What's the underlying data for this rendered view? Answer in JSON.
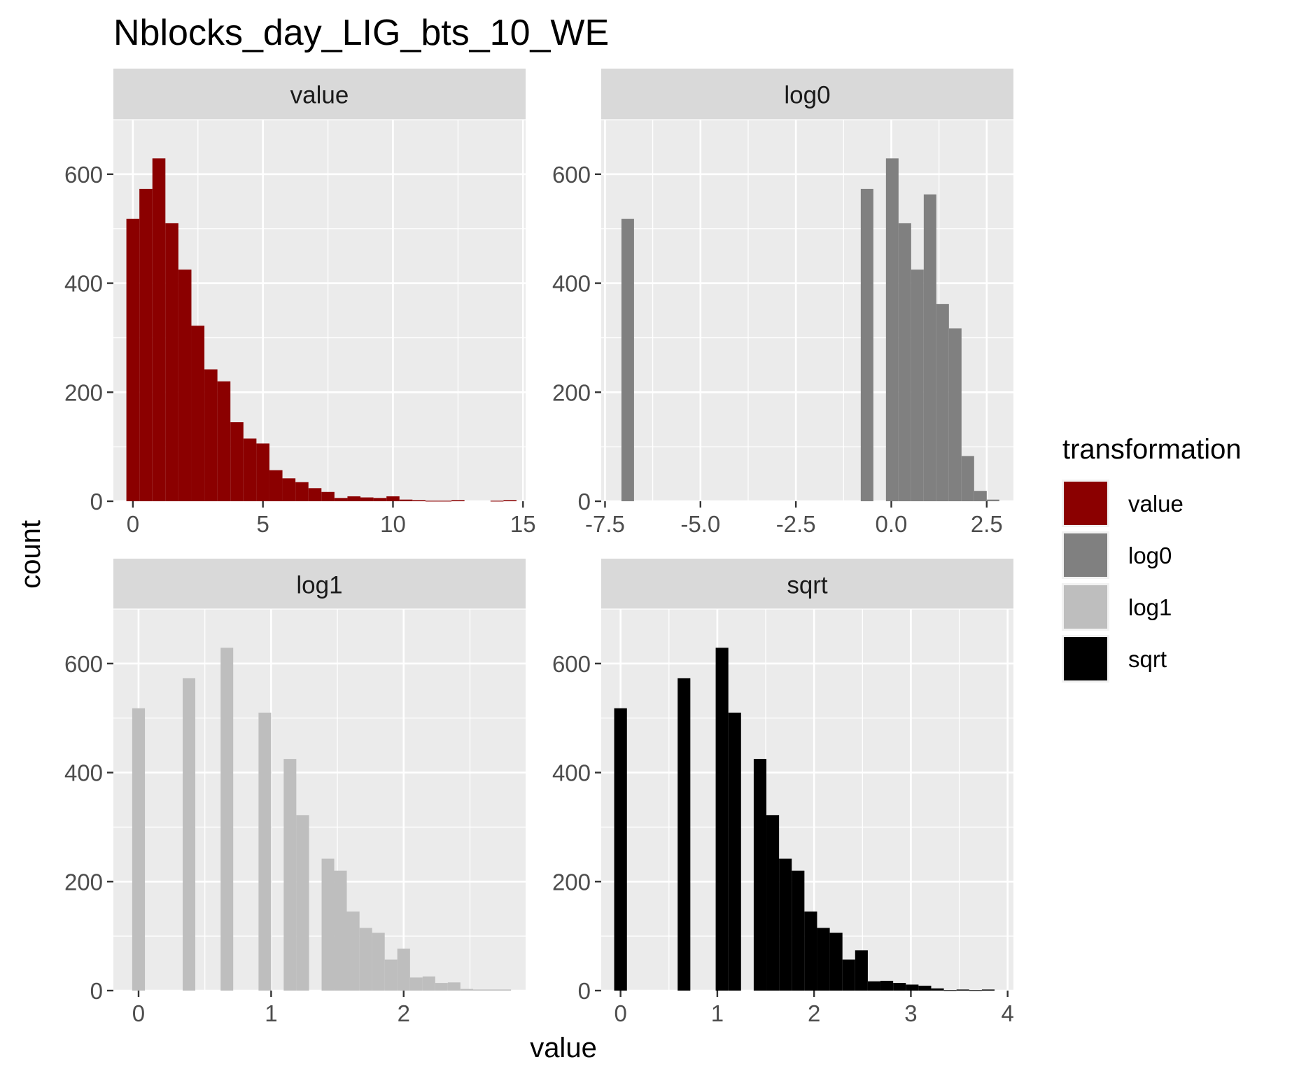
{
  "title": "Nblocks_day_LIG_bts_10_WE",
  "xlabel": "value",
  "ylabel": "count",
  "legend": {
    "title": "transformation",
    "placement": "right",
    "entries": [
      {
        "label": "value",
        "color": "#8B0000"
      },
      {
        "label": "log0",
        "color": "#808080"
      },
      {
        "label": "log1",
        "color": "#BEBEBE"
      },
      {
        "label": "sqrt",
        "color": "#000000"
      }
    ]
  },
  "chart_data": [
    {
      "type": "bar",
      "panel": "value",
      "color": "#8B0000",
      "xlim": [
        -0.75,
        15.1
      ],
      "ylim": [
        0,
        700
      ],
      "xticks": [
        0,
        5,
        10,
        15
      ],
      "xtick_labels": [
        "0",
        "5",
        "10",
        "15"
      ],
      "yticks": [
        0,
        200,
        400,
        600
      ],
      "ytick_labels": [
        "0",
        "200",
        "400",
        "600"
      ],
      "bin_width": 0.5,
      "bins": [
        {
          "x0": -0.25,
          "x1": 0.25,
          "count": 518
        },
        {
          "x0": 0.25,
          "x1": 0.75,
          "count": 573
        },
        {
          "x0": 0.75,
          "x1": 1.25,
          "count": 629
        },
        {
          "x0": 1.25,
          "x1": 1.75,
          "count": 510
        },
        {
          "x0": 1.75,
          "x1": 2.25,
          "count": 425
        },
        {
          "x0": 2.25,
          "x1": 2.75,
          "count": 322
        },
        {
          "x0": 2.75,
          "x1": 3.25,
          "count": 242
        },
        {
          "x0": 3.25,
          "x1": 3.75,
          "count": 220
        },
        {
          "x0": 3.75,
          "x1": 4.25,
          "count": 145
        },
        {
          "x0": 4.25,
          "x1": 4.75,
          "count": 115
        },
        {
          "x0": 4.75,
          "x1": 5.25,
          "count": 106
        },
        {
          "x0": 5.25,
          "x1": 5.75,
          "count": 57
        },
        {
          "x0": 5.75,
          "x1": 6.25,
          "count": 42
        },
        {
          "x0": 6.25,
          "x1": 6.75,
          "count": 35
        },
        {
          "x0": 6.75,
          "x1": 7.25,
          "count": 24
        },
        {
          "x0": 7.25,
          "x1": 7.75,
          "count": 17
        },
        {
          "x0": 7.75,
          "x1": 8.25,
          "count": 6
        },
        {
          "x0": 8.25,
          "x1": 8.75,
          "count": 9
        },
        {
          "x0": 8.75,
          "x1": 9.25,
          "count": 7
        },
        {
          "x0": 9.25,
          "x1": 9.75,
          "count": 6
        },
        {
          "x0": 9.75,
          "x1": 10.25,
          "count": 9
        },
        {
          "x0": 10.25,
          "x1": 10.75,
          "count": 3
        },
        {
          "x0": 10.75,
          "x1": 11.25,
          "count": 2
        },
        {
          "x0": 11.25,
          "x1": 11.75,
          "count": 1
        },
        {
          "x0": 11.75,
          "x1": 12.25,
          "count": 1
        },
        {
          "x0": 12.25,
          "x1": 12.75,
          "count": 2
        },
        {
          "x0": 12.75,
          "x1": 13.25,
          "count": 0
        },
        {
          "x0": 13.25,
          "x1": 13.75,
          "count": 0
        },
        {
          "x0": 13.75,
          "x1": 14.25,
          "count": 1
        },
        {
          "x0": 14.25,
          "x1": 14.75,
          "count": 2
        }
      ]
    },
    {
      "type": "bar",
      "panel": "log0",
      "color": "#808080",
      "xlim": [
        -7.6,
        3.2
      ],
      "ylim": [
        0,
        700
      ],
      "xticks": [
        -7.5,
        -5.0,
        -2.5,
        0.0,
        2.5
      ],
      "xtick_labels": [
        "-7.5",
        "-5.0",
        "-2.5",
        "0.0",
        "2.5"
      ],
      "yticks": [
        0,
        200,
        400,
        600
      ],
      "ytick_labels": [
        "0",
        "200",
        "400",
        "600"
      ],
      "bin_width": 0.33,
      "bins": [
        {
          "x0": -7.07,
          "x1": -6.74,
          "count": 518
        },
        {
          "x0": -0.8,
          "x1": -0.47,
          "count": 573
        },
        {
          "x0": -0.14,
          "x1": 0.19,
          "count": 629
        },
        {
          "x0": 0.19,
          "x1": 0.52,
          "count": 510
        },
        {
          "x0": 0.52,
          "x1": 0.85,
          "count": 425
        },
        {
          "x0": 0.85,
          "x1": 1.18,
          "count": 563
        },
        {
          "x0": 1.18,
          "x1": 1.51,
          "count": 362
        },
        {
          "x0": 1.51,
          "x1": 1.84,
          "count": 317
        },
        {
          "x0": 1.84,
          "x1": 2.17,
          "count": 83
        },
        {
          "x0": 2.17,
          "x1": 2.5,
          "count": 19
        },
        {
          "x0": 2.5,
          "x1": 2.83,
          "count": 3
        }
      ]
    },
    {
      "type": "bar",
      "panel": "log1",
      "color": "#BEBEBE",
      "xlim": [
        -0.19,
        2.92
      ],
      "ylim": [
        0,
        700
      ],
      "xticks": [
        0,
        1,
        2
      ],
      "xtick_labels": [
        "0",
        "1",
        "2"
      ],
      "yticks": [
        0,
        200,
        400,
        600
      ],
      "ytick_labels": [
        "0",
        "200",
        "400",
        "600"
      ],
      "bin_width": 0.095,
      "bins": [
        {
          "x0": -0.048,
          "x1": 0.048,
          "count": 518
        },
        {
          "x0": 0.333,
          "x1": 0.428,
          "count": 573
        },
        {
          "x0": 0.619,
          "x1": 0.714,
          "count": 629
        },
        {
          "x0": 0.905,
          "x1": 1.0,
          "count": 510
        },
        {
          "x0": 1.095,
          "x1": 1.19,
          "count": 425
        },
        {
          "x0": 1.19,
          "x1": 1.286,
          "count": 322
        },
        {
          "x0": 1.381,
          "x1": 1.476,
          "count": 242
        },
        {
          "x0": 1.476,
          "x1": 1.571,
          "count": 220
        },
        {
          "x0": 1.571,
          "x1": 1.667,
          "count": 145
        },
        {
          "x0": 1.667,
          "x1": 1.762,
          "count": 115
        },
        {
          "x0": 1.762,
          "x1": 1.857,
          "count": 106
        },
        {
          "x0": 1.857,
          "x1": 1.952,
          "count": 57
        },
        {
          "x0": 1.952,
          "x1": 2.048,
          "count": 77
        },
        {
          "x0": 2.048,
          "x1": 2.143,
          "count": 24
        },
        {
          "x0": 2.143,
          "x1": 2.238,
          "count": 26
        },
        {
          "x0": 2.238,
          "x1": 2.333,
          "count": 14
        },
        {
          "x0": 2.333,
          "x1": 2.428,
          "count": 15
        },
        {
          "x0": 2.428,
          "x1": 2.524,
          "count": 3
        },
        {
          "x0": 2.524,
          "x1": 2.619,
          "count": 2
        },
        {
          "x0": 2.619,
          "x1": 2.714,
          "count": 2
        },
        {
          "x0": 2.714,
          "x1": 2.81,
          "count": 2
        }
      ]
    },
    {
      "type": "bar",
      "panel": "sqrt",
      "color": "#000000",
      "xlim": [
        -0.2,
        4.06
      ],
      "ylim": [
        0,
        700
      ],
      "xticks": [
        0,
        1,
        2,
        3,
        4
      ],
      "xtick_labels": [
        "0",
        "1",
        "2",
        "3",
        "4"
      ],
      "yticks": [
        0,
        200,
        400,
        600
      ],
      "ytick_labels": [
        "0",
        "200",
        "400",
        "600"
      ],
      "bin_width": 0.131,
      "bins": [
        {
          "x0": -0.066,
          "x1": 0.066,
          "count": 518
        },
        {
          "x0": 0.59,
          "x1": 0.721,
          "count": 573
        },
        {
          "x0": 0.983,
          "x1": 1.114,
          "count": 629
        },
        {
          "x0": 1.114,
          "x1": 1.245,
          "count": 510
        },
        {
          "x0": 1.376,
          "x1": 1.507,
          "count": 425
        },
        {
          "x0": 1.507,
          "x1": 1.638,
          "count": 322
        },
        {
          "x0": 1.638,
          "x1": 1.769,
          "count": 242
        },
        {
          "x0": 1.769,
          "x1": 1.9,
          "count": 220
        },
        {
          "x0": 1.9,
          "x1": 2.031,
          "count": 145
        },
        {
          "x0": 2.031,
          "x1": 2.162,
          "count": 115
        },
        {
          "x0": 2.162,
          "x1": 2.293,
          "count": 106
        },
        {
          "x0": 2.293,
          "x1": 2.424,
          "count": 57
        },
        {
          "x0": 2.424,
          "x1": 2.555,
          "count": 74
        },
        {
          "x0": 2.555,
          "x1": 2.686,
          "count": 17
        },
        {
          "x0": 2.686,
          "x1": 2.817,
          "count": 18
        },
        {
          "x0": 2.817,
          "x1": 2.948,
          "count": 14
        },
        {
          "x0": 2.948,
          "x1": 3.079,
          "count": 11
        },
        {
          "x0": 3.079,
          "x1": 3.21,
          "count": 9
        },
        {
          "x0": 3.21,
          "x1": 3.341,
          "count": 4
        },
        {
          "x0": 3.341,
          "x1": 3.472,
          "count": 1
        },
        {
          "x0": 3.472,
          "x1": 3.603,
          "count": 2
        },
        {
          "x0": 3.603,
          "x1": 3.734,
          "count": 1
        },
        {
          "x0": 3.734,
          "x1": 3.865,
          "count": 2
        }
      ]
    }
  ]
}
